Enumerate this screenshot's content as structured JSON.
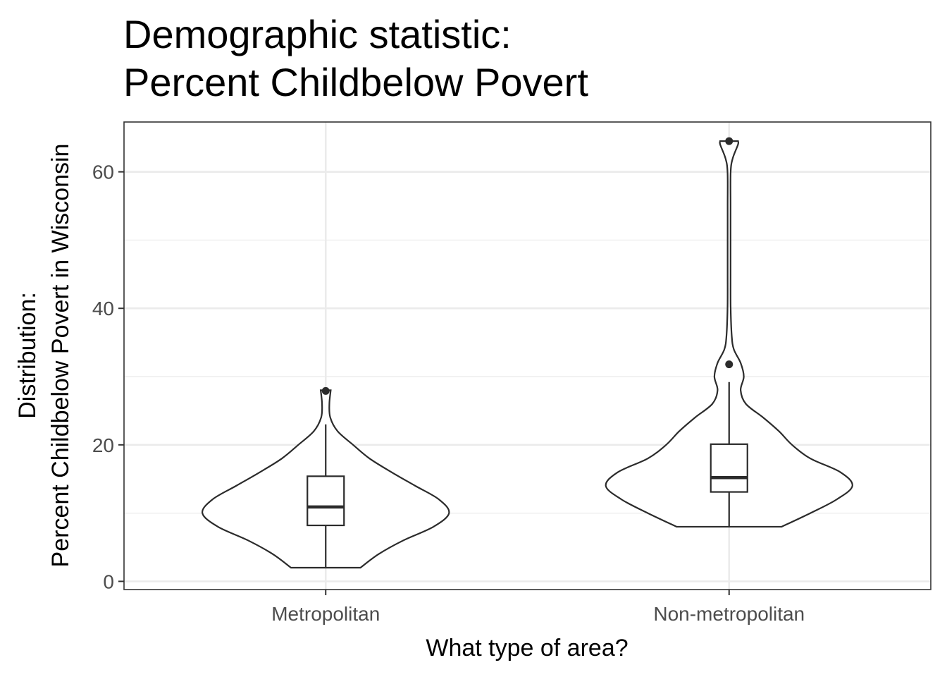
{
  "chart_data": {
    "type": "violin",
    "title": [
      "Demographic statistic:",
      "Percent Childbelow Povert"
    ],
    "xlabel": "What type of area?",
    "ylabel": [
      "Distribution:",
      "Percent Childbelow Povert in Wisconsin"
    ],
    "categories": [
      "Metropolitan",
      "Non-metropolitan"
    ],
    "ylim": [
      -1.2,
      67.3
    ],
    "yticks": [
      0,
      20,
      40,
      60
    ],
    "yminor": [
      10,
      30,
      50
    ],
    "grid": true,
    "colors": {
      "outline": "#2b2b2b",
      "grid": "#ebebeb",
      "panel_border": "#333333",
      "tick": "#333333"
    },
    "violins": [
      {
        "category": "Metropolitan",
        "range": [
          2,
          28
        ],
        "density": [
          [
            2,
            0.38
          ],
          [
            4,
            0.58
          ],
          [
            6,
            0.85
          ],
          [
            8,
            1.18
          ],
          [
            10,
            1.35
          ],
          [
            12,
            1.24
          ],
          [
            14,
            0.98
          ],
          [
            16,
            0.72
          ],
          [
            18,
            0.48
          ],
          [
            20,
            0.3
          ],
          [
            22,
            0.13
          ],
          [
            24,
            0.05
          ],
          [
            26,
            0.04
          ],
          [
            28,
            0.055
          ]
        ],
        "box": {
          "min": 2,
          "q1": 8.2,
          "median": 10.9,
          "q3": 15.4,
          "max": 23
        },
        "outliers": [
          27.9
        ]
      },
      {
        "category": "Non-metropolitan",
        "range": [
          8,
          64.5
        ],
        "density": [
          [
            8,
            1.0
          ],
          [
            10,
            1.55
          ],
          [
            12,
            2.05
          ],
          [
            14,
            2.35
          ],
          [
            16,
            2.12
          ],
          [
            18,
            1.55
          ],
          [
            20,
            1.2
          ],
          [
            22,
            0.95
          ],
          [
            24,
            0.65
          ],
          [
            26,
            0.32
          ],
          [
            28,
            0.22
          ],
          [
            30,
            0.28
          ],
          [
            32,
            0.22
          ],
          [
            34,
            0.09
          ],
          [
            36,
            0.05
          ],
          [
            40,
            0.03
          ],
          [
            45,
            0.028
          ],
          [
            50,
            0.028
          ],
          [
            55,
            0.028
          ],
          [
            60,
            0.03
          ],
          [
            62,
            0.07
          ],
          [
            64,
            0.17
          ],
          [
            64.5,
            0.17
          ]
        ],
        "box": {
          "min": 8,
          "q1": 13.1,
          "median": 15.2,
          "q3": 20.1,
          "max": 29.2
        },
        "outliers": [
          31.8,
          64.5
        ]
      }
    ]
  }
}
